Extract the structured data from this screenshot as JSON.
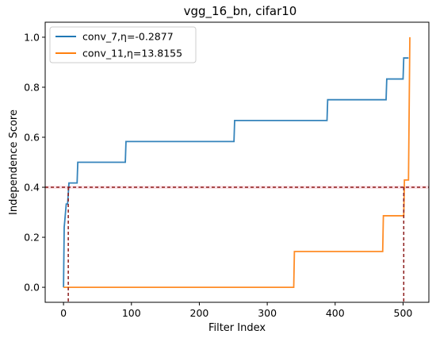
{
  "chart_data": {
    "type": "line",
    "title": "vgg_16_bn, cifar10",
    "xlabel": "Filter Index",
    "ylabel": "Independence Score",
    "xlim": [
      -27,
      538
    ],
    "ylim": [
      -0.06,
      1.06
    ],
    "xticks": [
      0,
      100,
      200,
      300,
      400,
      500
    ],
    "yticks": [
      0.0,
      0.2,
      0.4,
      0.6,
      0.8,
      1.0
    ],
    "ytick_labels": [
      "0.0",
      "0.2",
      "0.4",
      "0.6",
      "0.8",
      "1.0"
    ],
    "legend_position": "top-left",
    "series": [
      {
        "name": "conv_7,η=-0.2877",
        "color": "#1f77b4",
        "x": [
          0,
          1,
          2,
          4,
          6,
          8,
          20,
          21,
          91,
          92,
          251,
          252,
          388,
          389,
          475,
          476,
          500,
          501,
          508
        ],
        "y": [
          0.0,
          0.24,
          0.27,
          0.333,
          0.333,
          0.417,
          0.417,
          0.5,
          0.5,
          0.583,
          0.583,
          0.667,
          0.667,
          0.75,
          0.75,
          0.833,
          0.833,
          0.917,
          0.917
        ]
      },
      {
        "name": "conv_11,η=13.8155",
        "color": "#ff7f0e",
        "x": [
          0,
          339,
          340,
          470,
          471,
          501,
          502,
          508,
          510
        ],
        "y": [
          0.0,
          0.0,
          0.143,
          0.143,
          0.286,
          0.286,
          0.429,
          0.429,
          1.0
        ]
      }
    ],
    "reference_lines": {
      "horizontal_y": 0.4,
      "vertical_x": [
        7,
        501
      ],
      "color": "#8b1a1a",
      "style": "dashed"
    },
    "shading_color": "#f4a6b4"
  }
}
